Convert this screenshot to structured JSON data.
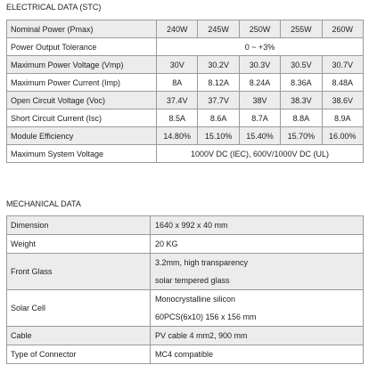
{
  "electrical": {
    "title": "ELECTRICAL DATA (STC)",
    "rows": [
      [
        "Nominal Power (Pmax)",
        "240W",
        "245W",
        "250W",
        "255W",
        "260W"
      ],
      [
        "Power Output Tolerance",
        "0 ~ +3%"
      ],
      [
        "Maximum Power Voltage (Vmp)",
        "30V",
        "30.2V",
        "30.3V",
        "30.5V",
        "30.7V"
      ],
      [
        "Maximum Power Current (Imp)",
        "8A",
        "8.12A",
        "8.24A",
        "8.36A",
        "8.48A"
      ],
      [
        "Open Circuit Voltage (Voc)",
        "37.4V",
        "37.7V",
        "38V",
        "38.3V",
        "38.6V"
      ],
      [
        "Short Circuit Current (Isc)",
        "8.5A",
        "8.6A",
        "8.7A",
        "8.8A",
        "8.9A"
      ],
      [
        "Module Efficiency",
        "14.80%",
        "15.10%",
        "15.40%",
        "15.70%",
        "16.00%"
      ],
      [
        "Maximum System Voltage",
        "1000V DC (IEC), 600V/1000V DC (UL)"
      ]
    ]
  },
  "mechanical": {
    "title": "MECHANICAL DATA",
    "rows": [
      [
        "Dimension",
        [
          "1640 x 992 x 40 mm"
        ]
      ],
      [
        "Weight",
        [
          "20 KG"
        ]
      ],
      [
        "Front Glass",
        [
          "3.2mm, high transparency",
          "solar tempered glass"
        ]
      ],
      [
        "Solar Cell",
        [
          "Monocrystalline silicon",
          "60PCS(6x10) 156 x 156 mm"
        ]
      ],
      [
        "Cable",
        [
          "PV cable 4 mm2, 900 mm"
        ]
      ],
      [
        "Type of Connector",
        [
          "MC4 compatible"
        ]
      ]
    ]
  }
}
